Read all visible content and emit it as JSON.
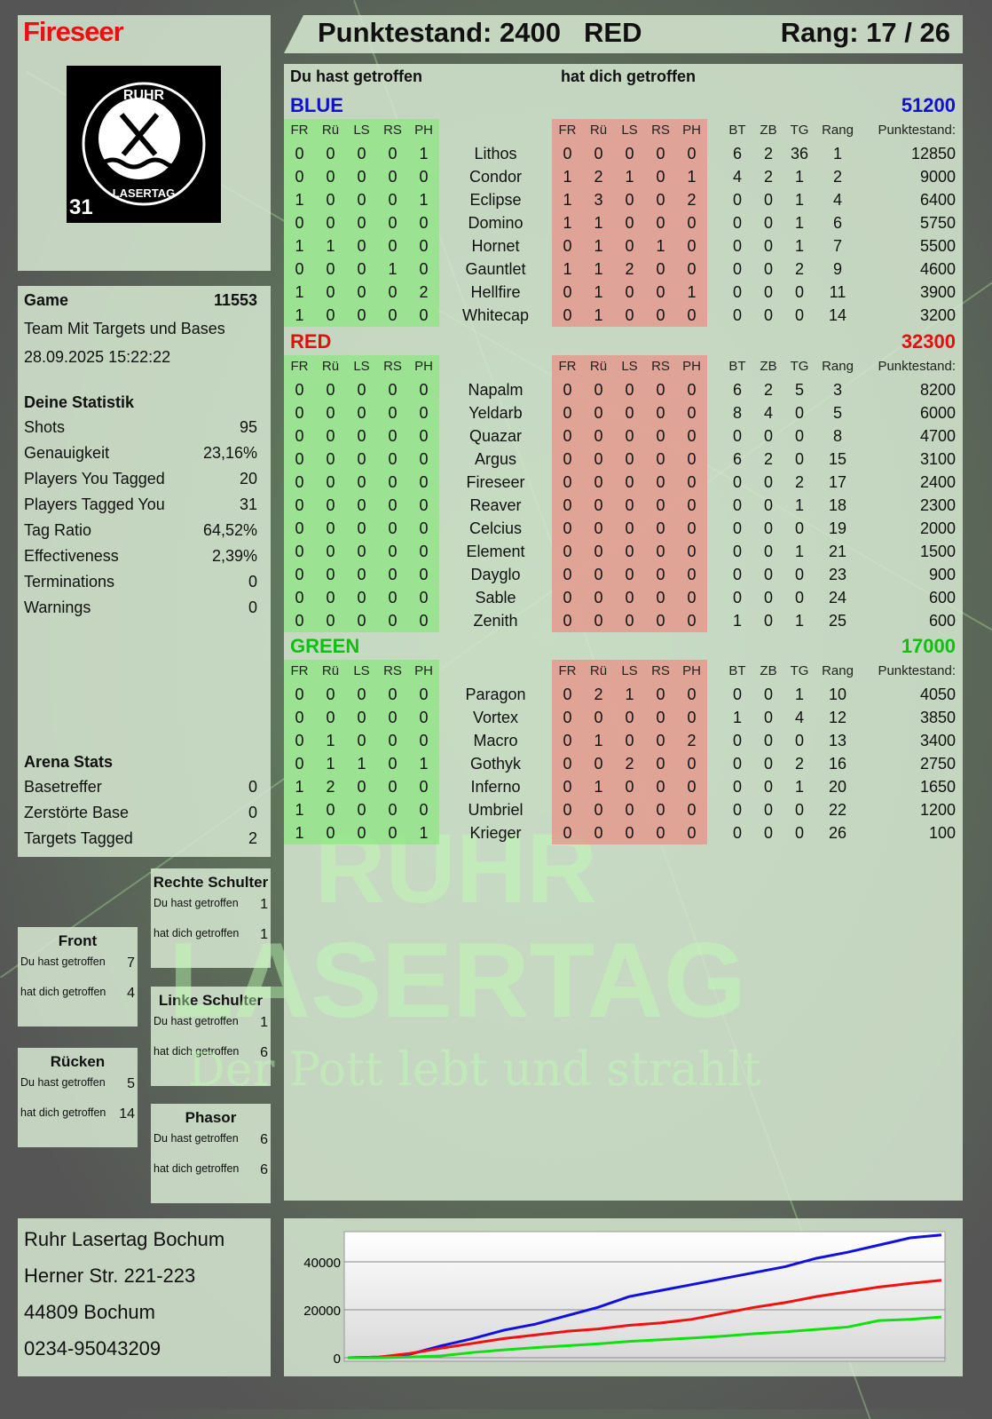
{
  "player": {
    "name": "Fireseer",
    "score_label": "Punktestand: 2400",
    "team": "RED",
    "rank_label": "Rang: 17 / 26"
  },
  "logo": {
    "top": "RUHR",
    "bottom": "LASERTAG",
    "number": "31"
  },
  "watermark": {
    "line1": "RUHR",
    "line2": "LASERTAG",
    "line3": "Der Pott lebt und strahlt"
  },
  "sections": {
    "you_hit": "Du hast getroffen",
    "hit_you": "hat dich getroffen"
  },
  "columns": {
    "hit": [
      "FR",
      "Rü",
      "LS",
      "RS",
      "PH"
    ],
    "stats": [
      "BT",
      "ZB",
      "TG",
      "Rang"
    ],
    "points": "Punktestand:"
  },
  "teams": [
    {
      "name": "BLUE",
      "score": "51200",
      "color": "#1010d0",
      "players": [
        {
          "name": "Lithos",
          "hit": [
            0,
            0,
            0,
            0,
            1
          ],
          "got": [
            0,
            0,
            0,
            0,
            0
          ],
          "bt": 6,
          "zb": 2,
          "tg": 36,
          "rank": 1,
          "points": 12850
        },
        {
          "name": "Condor",
          "hit": [
            0,
            0,
            0,
            0,
            0
          ],
          "got": [
            1,
            2,
            1,
            0,
            1
          ],
          "bt": 4,
          "zb": 2,
          "tg": 1,
          "rank": 2,
          "points": 9000
        },
        {
          "name": "Eclipse",
          "hit": [
            1,
            0,
            0,
            0,
            1
          ],
          "got": [
            1,
            3,
            0,
            0,
            2
          ],
          "bt": 0,
          "zb": 0,
          "tg": 1,
          "rank": 4,
          "points": 6400
        },
        {
          "name": "Domino",
          "hit": [
            0,
            0,
            0,
            0,
            0
          ],
          "got": [
            1,
            1,
            0,
            0,
            0
          ],
          "bt": 0,
          "zb": 0,
          "tg": 1,
          "rank": 6,
          "points": 5750
        },
        {
          "name": "Hornet",
          "hit": [
            1,
            1,
            0,
            0,
            0
          ],
          "got": [
            0,
            1,
            0,
            1,
            0
          ],
          "bt": 0,
          "zb": 0,
          "tg": 1,
          "rank": 7,
          "points": 5500
        },
        {
          "name": "Gauntlet",
          "hit": [
            0,
            0,
            0,
            1,
            0
          ],
          "got": [
            1,
            1,
            2,
            0,
            0
          ],
          "bt": 0,
          "zb": 0,
          "tg": 2,
          "rank": 9,
          "points": 4600
        },
        {
          "name": "Hellfire",
          "hit": [
            1,
            0,
            0,
            0,
            2
          ],
          "got": [
            0,
            1,
            0,
            0,
            1
          ],
          "bt": 0,
          "zb": 0,
          "tg": 0,
          "rank": 11,
          "points": 3900
        },
        {
          "name": "Whitecap",
          "hit": [
            1,
            0,
            0,
            0,
            0
          ],
          "got": [
            0,
            1,
            0,
            0,
            0
          ],
          "bt": 0,
          "zb": 0,
          "tg": 0,
          "rank": 14,
          "points": 3200
        }
      ]
    },
    {
      "name": "RED",
      "score": "32300",
      "color": "#e01010",
      "players": [
        {
          "name": "Napalm",
          "hit": [
            0,
            0,
            0,
            0,
            0
          ],
          "got": [
            0,
            0,
            0,
            0,
            0
          ],
          "bt": 6,
          "zb": 2,
          "tg": 5,
          "rank": 3,
          "points": 8200
        },
        {
          "name": "Yeldarb",
          "hit": [
            0,
            0,
            0,
            0,
            0
          ],
          "got": [
            0,
            0,
            0,
            0,
            0
          ],
          "bt": 8,
          "zb": 4,
          "tg": 0,
          "rank": 5,
          "points": 6000
        },
        {
          "name": "Quazar",
          "hit": [
            0,
            0,
            0,
            0,
            0
          ],
          "got": [
            0,
            0,
            0,
            0,
            0
          ],
          "bt": 0,
          "zb": 0,
          "tg": 0,
          "rank": 8,
          "points": 4700
        },
        {
          "name": "Argus",
          "hit": [
            0,
            0,
            0,
            0,
            0
          ],
          "got": [
            0,
            0,
            0,
            0,
            0
          ],
          "bt": 6,
          "zb": 2,
          "tg": 0,
          "rank": 15,
          "points": 3100
        },
        {
          "name": "Fireseer",
          "hit": [
            0,
            0,
            0,
            0,
            0
          ],
          "got": [
            0,
            0,
            0,
            0,
            0
          ],
          "bt": 0,
          "zb": 0,
          "tg": 2,
          "rank": 17,
          "points": 2400
        },
        {
          "name": "Reaver",
          "hit": [
            0,
            0,
            0,
            0,
            0
          ],
          "got": [
            0,
            0,
            0,
            0,
            0
          ],
          "bt": 0,
          "zb": 0,
          "tg": 1,
          "rank": 18,
          "points": 2300
        },
        {
          "name": "Celcius",
          "hit": [
            0,
            0,
            0,
            0,
            0
          ],
          "got": [
            0,
            0,
            0,
            0,
            0
          ],
          "bt": 0,
          "zb": 0,
          "tg": 0,
          "rank": 19,
          "points": 2000
        },
        {
          "name": "Element",
          "hit": [
            0,
            0,
            0,
            0,
            0
          ],
          "got": [
            0,
            0,
            0,
            0,
            0
          ],
          "bt": 0,
          "zb": 0,
          "tg": 1,
          "rank": 21,
          "points": 1500
        },
        {
          "name": "Dayglo",
          "hit": [
            0,
            0,
            0,
            0,
            0
          ],
          "got": [
            0,
            0,
            0,
            0,
            0
          ],
          "bt": 0,
          "zb": 0,
          "tg": 0,
          "rank": 23,
          "points": 900
        },
        {
          "name": "Sable",
          "hit": [
            0,
            0,
            0,
            0,
            0
          ],
          "got": [
            0,
            0,
            0,
            0,
            0
          ],
          "bt": 0,
          "zb": 0,
          "tg": 0,
          "rank": 24,
          "points": 600
        },
        {
          "name": "Zenith",
          "hit": [
            0,
            0,
            0,
            0,
            0
          ],
          "got": [
            0,
            0,
            0,
            0,
            0
          ],
          "bt": 1,
          "zb": 0,
          "tg": 1,
          "rank": 25,
          "points": 600
        }
      ]
    },
    {
      "name": "GREEN",
      "score": "17000",
      "color": "#10c010",
      "players": [
        {
          "name": "Paragon",
          "hit": [
            0,
            0,
            0,
            0,
            0
          ],
          "got": [
            0,
            2,
            1,
            0,
            0
          ],
          "bt": 0,
          "zb": 0,
          "tg": 1,
          "rank": 10,
          "points": 4050
        },
        {
          "name": "Vortex",
          "hit": [
            0,
            0,
            0,
            0,
            0
          ],
          "got": [
            0,
            0,
            0,
            0,
            0
          ],
          "bt": 1,
          "zb": 0,
          "tg": 4,
          "rank": 12,
          "points": 3850
        },
        {
          "name": "Macro",
          "hit": [
            0,
            1,
            0,
            0,
            0
          ],
          "got": [
            0,
            1,
            0,
            0,
            2
          ],
          "bt": 0,
          "zb": 0,
          "tg": 0,
          "rank": 13,
          "points": 3400
        },
        {
          "name": "Gothyk",
          "hit": [
            0,
            1,
            1,
            0,
            1
          ],
          "got": [
            0,
            0,
            2,
            0,
            0
          ],
          "bt": 0,
          "zb": 0,
          "tg": 2,
          "rank": 16,
          "points": 2750
        },
        {
          "name": "Inferno",
          "hit": [
            1,
            2,
            0,
            0,
            0
          ],
          "got": [
            0,
            1,
            0,
            0,
            0
          ],
          "bt": 0,
          "zb": 0,
          "tg": 1,
          "rank": 20,
          "points": 1650
        },
        {
          "name": "Umbriel",
          "hit": [
            1,
            0,
            0,
            0,
            0
          ],
          "got": [
            0,
            0,
            0,
            0,
            0
          ],
          "bt": 0,
          "zb": 0,
          "tg": 0,
          "rank": 22,
          "points": 1200
        },
        {
          "name": "Krieger",
          "hit": [
            1,
            0,
            0,
            0,
            1
          ],
          "got": [
            0,
            0,
            0,
            0,
            0
          ],
          "bt": 0,
          "zb": 0,
          "tg": 0,
          "rank": 26,
          "points": 100
        }
      ]
    }
  ],
  "game": {
    "label": "Game",
    "id": "11553",
    "mode": "Team Mit Targets und Bases",
    "datetime": "28.09.2025 15:22:22"
  },
  "stats": {
    "title": "Deine Statistik",
    "items": [
      {
        "label": "Shots",
        "value": "95"
      },
      {
        "label": "Genauigkeit",
        "value": "23,16%"
      },
      {
        "label": "Players You Tagged",
        "value": "20"
      },
      {
        "label": "Players Tagged You",
        "value": "31"
      },
      {
        "label": "Tag Ratio",
        "value": "64,52%"
      },
      {
        "label": "Effectiveness",
        "value": "2,39%"
      },
      {
        "label": "Terminations",
        "value": "0"
      },
      {
        "label": "Warnings",
        "value": "0"
      }
    ]
  },
  "arena": {
    "title": "Arena Stats",
    "items": [
      {
        "label": "Basetreffer",
        "value": "0"
      },
      {
        "label": "Zerstörte Base",
        "value": "0"
      },
      {
        "label": "Targets Tagged",
        "value": "2"
      }
    ]
  },
  "zones": [
    {
      "title": "Rechte Schulter",
      "you_hit": "1",
      "hit_you": "1"
    },
    {
      "title": "Front",
      "you_hit": "7",
      "hit_you": "4"
    },
    {
      "title": "Linke Schulter",
      "you_hit": "1",
      "hit_you": "6"
    },
    {
      "title": "Rücken",
      "you_hit": "5",
      "hit_you": "14"
    },
    {
      "title": "Phasor",
      "you_hit": "6",
      "hit_you": "6"
    }
  ],
  "address": [
    "Ruhr Lasertag Bochum",
    "Herner Str. 221-223",
    "44809 Bochum",
    "0234-95043209"
  ],
  "chart_data": {
    "type": "line",
    "ylim": [
      0,
      52600
    ],
    "yticks": [
      0,
      20000,
      40000
    ],
    "ytick_labels": [
      "0",
      "20000",
      "40000"
    ],
    "grid": true,
    "x": [
      0,
      1,
      2,
      3,
      4,
      5,
      6,
      7,
      8,
      9,
      10,
      11,
      12,
      13,
      14,
      15,
      16,
      17,
      18,
      19
    ],
    "series": [
      {
        "color": "#1010e0",
        "values": [
          0,
          300,
          1500,
          5000,
          8000,
          11500,
          14000,
          17500,
          21000,
          25500,
          28000,
          30500,
          33000,
          35500,
          38000,
          41500,
          44000,
          47000,
          50000,
          51200
        ]
      },
      {
        "color": "#f01010",
        "values": [
          0,
          300,
          1800,
          4000,
          6000,
          8000,
          9500,
          11000,
          12000,
          13500,
          14500,
          16000,
          18500,
          21000,
          23000,
          25500,
          27500,
          29500,
          31000,
          32300
        ]
      },
      {
        "color": "#10e010",
        "values": [
          0,
          0,
          300,
          800,
          2200,
          3300,
          4200,
          5000,
          5800,
          6800,
          7500,
          8200,
          9000,
          10000,
          10800,
          11800,
          12800,
          15500,
          16000,
          17000
        ]
      }
    ]
  }
}
